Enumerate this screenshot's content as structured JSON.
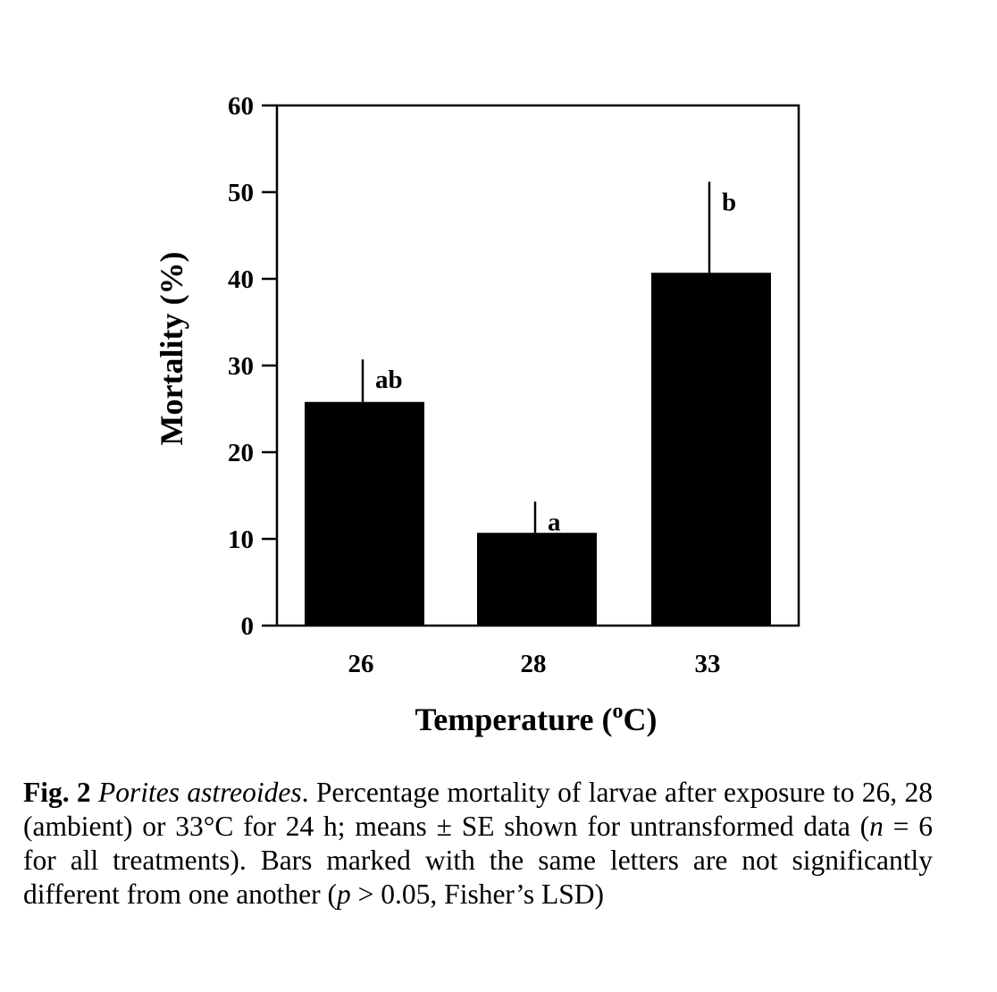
{
  "chart_data": {
    "type": "bar",
    "categories": [
      "26",
      "28",
      "33"
    ],
    "values": [
      25.8,
      10.7,
      40.7
    ],
    "error_upper": [
      4.9,
      3.6,
      10.5
    ],
    "significance_letters": [
      "ab",
      "a",
      "b"
    ],
    "xlabel_pre": "Temperature (",
    "xlabel_sup": "o",
    "xlabel_post": "C)",
    "ylabel": "Mortality (%)",
    "ylim": [
      0,
      60
    ],
    "yticks": [
      "0",
      "10",
      "20",
      "30",
      "40",
      "50",
      "60"
    ],
    "bar_color": "#000000",
    "grid": false,
    "legend": "none"
  },
  "caption": {
    "fig_number": "Fig. 2",
    "species": "Porites astreoides",
    "text_1": ". Percentage mortality of larvae after exposure to 26, 28 (ambient) or 33°C for 24 h; means ± SE shown for untransformed data (",
    "n_var": "n",
    "text_2": " = 6 for all treatments). Bars marked with the same letters are not significantly different from one another (",
    "p_var": "p",
    "text_3": " > 0.05, Fisher’s LSD)"
  }
}
